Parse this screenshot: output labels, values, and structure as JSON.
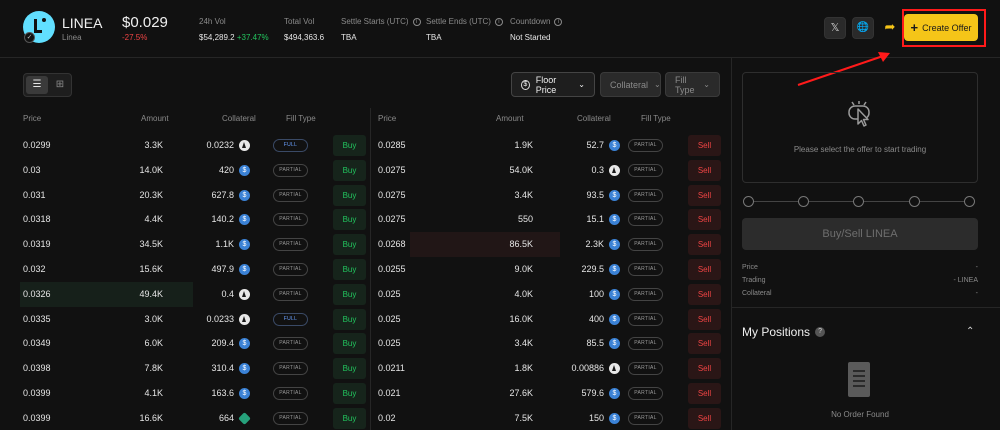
{
  "header": {
    "token_name": "LINEA",
    "token_sub": "Linea",
    "price": "$0.029",
    "change": "-27.5%",
    "stats": {
      "vol24_label": "24h Vol",
      "vol24_value": "$54,289.2",
      "vol24_change": "+37.47%",
      "total_vol_label": "Total Vol",
      "total_vol_value": "$494,363.6",
      "settle_start_label": "Settle Starts (UTC)",
      "settle_start_value": "TBA",
      "settle_end_label": "Settle Ends (UTC)",
      "settle_end_value": "TBA",
      "countdown_label": "Countdown",
      "countdown_value": "Not Started"
    },
    "buttons": {
      "x_icon": "𝕏",
      "globe_icon": "🌐",
      "share_icon": "➦",
      "create_offer_label": "Create Offer",
      "create_offer_plus": "+"
    }
  },
  "controls": {
    "floor_price_label": "Floor Price",
    "collateral_label": "Collateral",
    "fill_type_label": "Fill Type",
    "dollar_icon": "$",
    "chevron": "⌄",
    "list_icon": "☰",
    "grid_icon": "⊞"
  },
  "columns": {
    "price": "Price",
    "amount": "Amount",
    "collateral": "Collateral",
    "fill_type": "Fill Type"
  },
  "buy_rows": [
    {
      "price": "0.0299",
      "amount": "3.3K",
      "collateral": "0.0232",
      "coin": "eth",
      "fill": "FULL",
      "action": "Buy"
    },
    {
      "price": "0.03",
      "amount": "14.0K",
      "collateral": "420",
      "coin": "usdc",
      "fill": "PARTIAL",
      "action": "Buy"
    },
    {
      "price": "0.031",
      "amount": "20.3K",
      "collateral": "627.8",
      "coin": "usdc",
      "fill": "PARTIAL",
      "action": "Buy"
    },
    {
      "price": "0.0318",
      "amount": "4.4K",
      "collateral": "140.2",
      "coin": "usdc",
      "fill": "PARTIAL",
      "action": "Buy"
    },
    {
      "price": "0.0319",
      "amount": "34.5K",
      "collateral": "1.1K",
      "coin": "usdc",
      "fill": "PARTIAL",
      "action": "Buy"
    },
    {
      "price": "0.032",
      "amount": "15.6K",
      "collateral": "497.9",
      "coin": "usdc",
      "fill": "PARTIAL",
      "action": "Buy"
    },
    {
      "price": "0.0326",
      "amount": "49.4K",
      "collateral": "0.4",
      "coin": "eth",
      "fill": "PARTIAL",
      "action": "Buy",
      "highlight": true
    },
    {
      "price": "0.0335",
      "amount": "3.0K",
      "collateral": "0.0233",
      "coin": "eth",
      "fill": "FULL",
      "action": "Buy"
    },
    {
      "price": "0.0349",
      "amount": "6.0K",
      "collateral": "209.4",
      "coin": "usdc",
      "fill": "PARTIAL",
      "action": "Buy"
    },
    {
      "price": "0.0398",
      "amount": "7.8K",
      "collateral": "310.4",
      "coin": "usdc",
      "fill": "PARTIAL",
      "action": "Buy"
    },
    {
      "price": "0.0399",
      "amount": "4.1K",
      "collateral": "163.6",
      "coin": "usdc",
      "fill": "PARTIAL",
      "action": "Buy"
    },
    {
      "price": "0.0399",
      "amount": "16.6K",
      "collateral": "664",
      "coin": "usdt",
      "fill": "PARTIAL",
      "action": "Buy"
    }
  ],
  "sell_rows": [
    {
      "price": "0.0285",
      "amount": "1.9K",
      "collateral": "52.7",
      "coin": "usdc",
      "fill": "PARTIAL",
      "action": "Sell"
    },
    {
      "price": "0.0275",
      "amount": "54.0K",
      "collateral": "0.3",
      "coin": "eth",
      "fill": "PARTIAL",
      "action": "Sell"
    },
    {
      "price": "0.0275",
      "amount": "3.4K",
      "collateral": "93.5",
      "coin": "usdc",
      "fill": "PARTIAL",
      "action": "Sell"
    },
    {
      "price": "0.0275",
      "amount": "550",
      "collateral": "15.1",
      "coin": "usdc",
      "fill": "PARTIAL",
      "action": "Sell"
    },
    {
      "price": "0.0268",
      "amount": "86.5K",
      "collateral": "2.3K",
      "coin": "usdc",
      "fill": "PARTIAL",
      "action": "Sell",
      "highlight": true
    },
    {
      "price": "0.0255",
      "amount": "9.0K",
      "collateral": "229.5",
      "coin": "usdc",
      "fill": "PARTIAL",
      "action": "Sell"
    },
    {
      "price": "0.025",
      "amount": "4.0K",
      "collateral": "100",
      "coin": "usdc",
      "fill": "PARTIAL",
      "action": "Sell"
    },
    {
      "price": "0.025",
      "amount": "16.0K",
      "collateral": "400",
      "coin": "usdc",
      "fill": "PARTIAL",
      "action": "Sell"
    },
    {
      "price": "0.025",
      "amount": "3.4K",
      "collateral": "85.5",
      "coin": "usdc",
      "fill": "PARTIAL",
      "action": "Sell"
    },
    {
      "price": "0.0211",
      "amount": "1.8K",
      "collateral": "0.00886",
      "coin": "eth",
      "fill": "PARTIAL",
      "action": "Sell"
    },
    {
      "price": "0.021",
      "amount": "27.6K",
      "collateral": "579.6",
      "coin": "usdc",
      "fill": "PARTIAL",
      "action": "Sell"
    },
    {
      "price": "0.02",
      "amount": "7.5K",
      "collateral": "150",
      "coin": "usdc",
      "fill": "PARTIAL",
      "action": "Sell"
    }
  ],
  "panel": {
    "select_prompt": "Please select the offer to start trading",
    "trade_button": "Buy/Sell LINEA",
    "price_label": "Price",
    "price_value": "-",
    "trading_label": "Trading",
    "trading_value": "- LINEA",
    "collateral_label": "Collateral",
    "collateral_value": "-",
    "positions_title": "My Positions",
    "positions_help": "?",
    "collapse_icon": "⌃",
    "no_order": "No Order Found"
  },
  "colors": {
    "accent": "#f5c518",
    "buy": "#22c55e",
    "sell": "#ef4444",
    "annotation": "#ff1a1a"
  }
}
